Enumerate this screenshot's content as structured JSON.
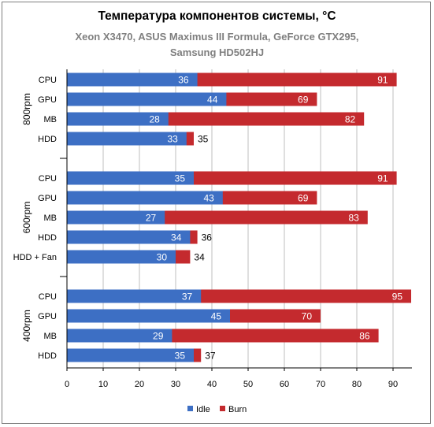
{
  "chart_data": {
    "type": "bar",
    "orientation": "horizontal",
    "title": "Температура компонентов системы, °C",
    "subtitle_lines": [
      "Xeon X3470, ASUS Maximus III Formula, GeForce GTX295,",
      "Samsung HD502HJ"
    ],
    "xlim": [
      0,
      95
    ],
    "xticks": [
      0,
      10,
      20,
      30,
      40,
      50,
      60,
      70,
      80,
      90
    ],
    "grid": true,
    "legend_position": "bottom",
    "colors": {
      "Idle": "#3d6fc4",
      "Burn": "#c42a2e"
    },
    "series": [
      {
        "name": "Idle"
      },
      {
        "name": "Burn"
      }
    ],
    "groups": [
      {
        "name": "800rpm",
        "rows": [
          {
            "category": "CPU",
            "idle": 36,
            "burn": 91
          },
          {
            "category": "GPU",
            "idle": 44,
            "burn": 69
          },
          {
            "category": "MB",
            "idle": 28,
            "burn": 82
          },
          {
            "category": "HDD",
            "idle": 33,
            "burn": 35
          }
        ]
      },
      {
        "name": "600rpm",
        "rows": [
          {
            "category": "CPU",
            "idle": 35,
            "burn": 91
          },
          {
            "category": "GPU",
            "idle": 43,
            "burn": 69
          },
          {
            "category": "MB",
            "idle": 27,
            "burn": 83
          },
          {
            "category": "HDD",
            "idle": 34,
            "burn": 36
          },
          {
            "category": "HDD + Fan",
            "idle": 30,
            "burn": 34
          }
        ]
      },
      {
        "name": "400rpm",
        "rows": [
          {
            "category": "CPU",
            "idle": 37,
            "burn": 95
          },
          {
            "category": "GPU",
            "idle": 45,
            "burn": 70
          },
          {
            "category": "MB",
            "idle": 29,
            "burn": 86
          },
          {
            "category": "HDD",
            "idle": 35,
            "burn": 37
          }
        ]
      }
    ]
  }
}
